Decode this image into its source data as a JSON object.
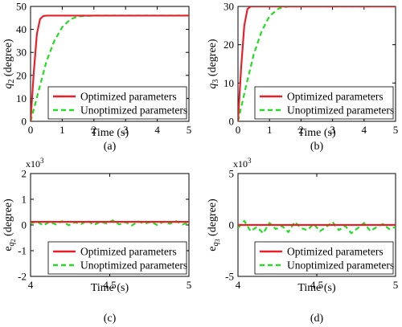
{
  "legend": {
    "optimized": "Optimized parameters",
    "unoptimized": "Unoptimized parameters"
  },
  "colors": {
    "optimized": "#e8202a",
    "unoptimized": "#22dd22"
  },
  "chart_data": [
    {
      "type": "line",
      "panel": "(a)",
      "xlabel": "Time (s)",
      "ylabel": "q2 (degree)",
      "xlim": [
        0,
        5
      ],
      "ylim": [
        0,
        50
      ],
      "xticks": [
        0,
        1,
        2,
        3,
        4,
        5
      ],
      "yticks": [
        0,
        10,
        20,
        30,
        40,
        50
      ],
      "legend_position": "bottom-right",
      "series": [
        {
          "name": "Optimized parameters",
          "style": "solid",
          "x": [
            0,
            0.1,
            0.2,
            0.3,
            0.4,
            0.5,
            5
          ],
          "y": [
            0,
            21,
            38,
            44.5,
            45.8,
            46,
            46
          ]
        },
        {
          "name": "Unoptimized parameters",
          "style": "dashed",
          "x": [
            0,
            0.25,
            0.5,
            0.75,
            1.0,
            1.25,
            1.5,
            2.0,
            5
          ],
          "y": [
            0,
            13,
            26,
            35,
            41,
            44.3,
            45.7,
            46,
            46
          ]
        }
      ]
    },
    {
      "type": "line",
      "panel": "(b)",
      "xlabel": "Time (s)",
      "ylabel": "q3 (degree)",
      "xlim": [
        0,
        5
      ],
      "ylim": [
        0,
        30
      ],
      "xticks": [
        0,
        1,
        2,
        3,
        4,
        5
      ],
      "yticks": [
        0,
        10,
        20,
        30
      ],
      "legend_position": "bottom-right",
      "series": [
        {
          "name": "Optimized parameters",
          "style": "solid",
          "x": [
            0,
            0.1,
            0.2,
            0.3,
            0.4,
            5
          ],
          "y": [
            0,
            14,
            25,
            29.3,
            30,
            30
          ]
        },
        {
          "name": "Unoptimized parameters",
          "style": "dashed",
          "x": [
            0,
            0.25,
            0.5,
            0.75,
            1.0,
            1.3,
            1.6,
            5
          ],
          "y": [
            0,
            9,
            17.5,
            23.5,
            27.5,
            29.5,
            30,
            30
          ]
        }
      ]
    },
    {
      "type": "line",
      "panel": "(c)",
      "xlabel": "Time (s)",
      "ylabel": "eq2 (degree)",
      "y_multiplier": "×10^3",
      "xlim": [
        4,
        5
      ],
      "ylim": [
        -2,
        2
      ],
      "xticks": [
        4,
        4.5,
        5
      ],
      "yticks": [
        -2,
        -1,
        0,
        1,
        2
      ],
      "legend_position": "bottom-right",
      "series": [
        {
          "name": "Optimized parameters",
          "style": "solid",
          "x": [
            4,
            5
          ],
          "y": [
            0.12,
            0.12
          ]
        },
        {
          "name": "Unoptimized parameters",
          "style": "dashed",
          "x": [
            4.0,
            4.04,
            4.08,
            4.12,
            4.16,
            4.2,
            4.24,
            4.28,
            4.32,
            4.36,
            4.4,
            4.44,
            4.48,
            4.52,
            4.56,
            4.6,
            4.64,
            4.68,
            4.72,
            4.76,
            4.8,
            4.84,
            4.88,
            4.92,
            4.96,
            5.0
          ],
          "y": [
            0.05,
            0.14,
            -0.02,
            0.12,
            0.02,
            0.15,
            -0.01,
            0.1,
            0.04,
            0.16,
            0.0,
            0.12,
            0.06,
            0.18,
            0.02,
            0.11,
            -0.02,
            0.14,
            0.05,
            0.12,
            0.0,
            0.13,
            0.05,
            0.15,
            0.02,
            0.1
          ]
        }
      ]
    },
    {
      "type": "line",
      "panel": "(d)",
      "xlabel": "Time (s)",
      "ylabel": "eq3 (degree)",
      "y_multiplier": "×10^3",
      "xlim": [
        4,
        5
      ],
      "ylim": [
        -5,
        5
      ],
      "xticks": [
        4,
        4.5,
        5
      ],
      "yticks": [
        -5,
        0,
        5
      ],
      "legend_position": "bottom-right",
      "series": [
        {
          "name": "Optimized parameters",
          "style": "solid",
          "x": [
            4,
            5
          ],
          "y": [
            0,
            0
          ]
        },
        {
          "name": "Unoptimized parameters",
          "style": "dashed",
          "x": [
            4.0,
            4.04,
            4.08,
            4.12,
            4.16,
            4.2,
            4.24,
            4.28,
            4.32,
            4.36,
            4.4,
            4.44,
            4.48,
            4.52,
            4.56,
            4.6,
            4.64,
            4.68,
            4.72,
            4.76,
            4.8,
            4.84,
            4.88,
            4.92,
            4.96,
            5.0
          ],
          "y": [
            -0.3,
            0.4,
            -0.6,
            -0.2,
            -0.8,
            0.2,
            -0.4,
            -0.1,
            -0.7,
            0.3,
            -0.3,
            -0.5,
            0.1,
            -0.6,
            -0.2,
            0.3,
            -0.5,
            -0.1,
            -0.8,
            -0.3,
            0.2,
            -0.6,
            -0.2,
            0.1,
            -0.4,
            -0.2
          ]
        }
      ]
    }
  ]
}
